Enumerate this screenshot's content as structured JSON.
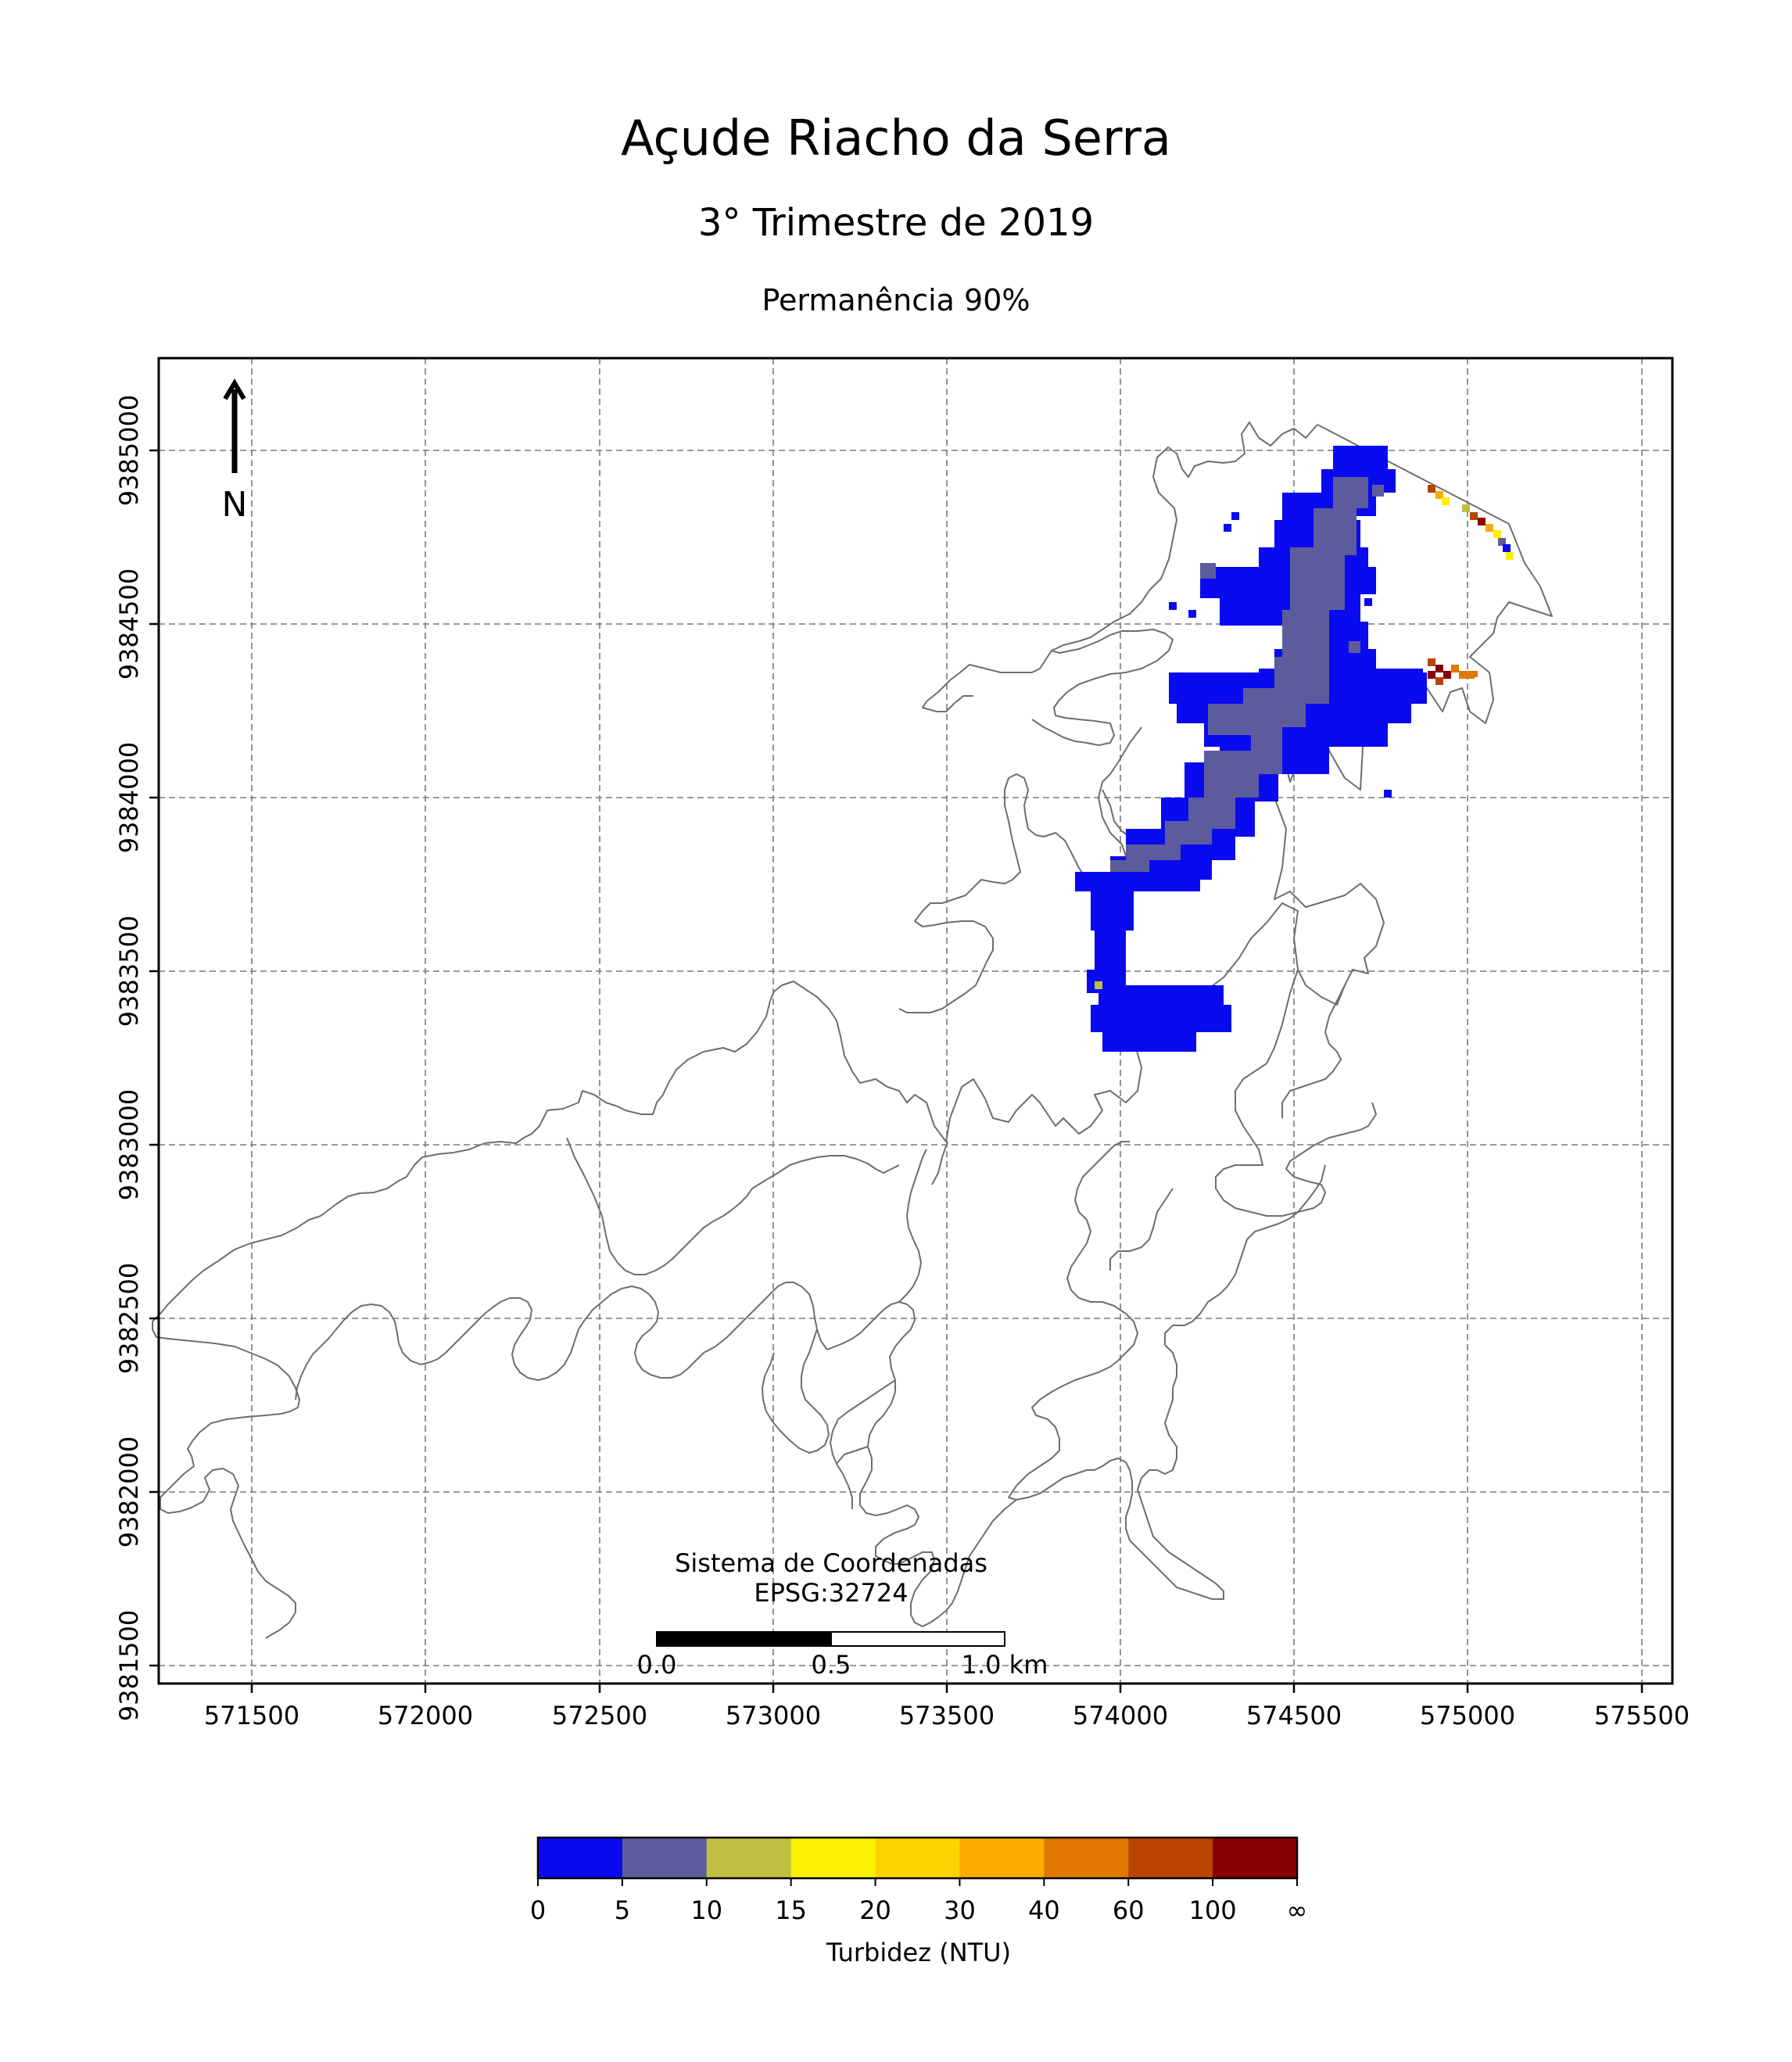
{
  "title": "Açude Riacho da Serra",
  "subtitle": "3° Trimestre de 2019",
  "subtitle2": "Permanência 90%",
  "north_label": "N",
  "crs": {
    "line1": "Sistema de Coordenadas",
    "line2": "EPSG:32724"
  },
  "scalebar": {
    "labels": [
      "0.0",
      "0.5",
      "1.0 km"
    ]
  },
  "map": {
    "x_ticks": [
      "571500",
      "572000",
      "572500",
      "573000",
      "573500",
      "574000",
      "574500",
      "575000",
      "575500"
    ],
    "y_ticks": [
      "9385000",
      "9384500",
      "9384000",
      "9383500",
      "9383000",
      "9382500",
      "9382000",
      "9381500"
    ],
    "grid": true
  },
  "colorbar": {
    "label": "Turbidez (NTU)",
    "ticks": [
      "0",
      "5",
      "10",
      "15",
      "20",
      "30",
      "40",
      "60",
      "100",
      "∞"
    ],
    "colors": [
      "#0a0af0",
      "#5c5c9c",
      "#bfbf42",
      "#fcf200",
      "#fcd200",
      "#fcab00",
      "#e07800",
      "#b84400",
      "#880000"
    ]
  }
}
